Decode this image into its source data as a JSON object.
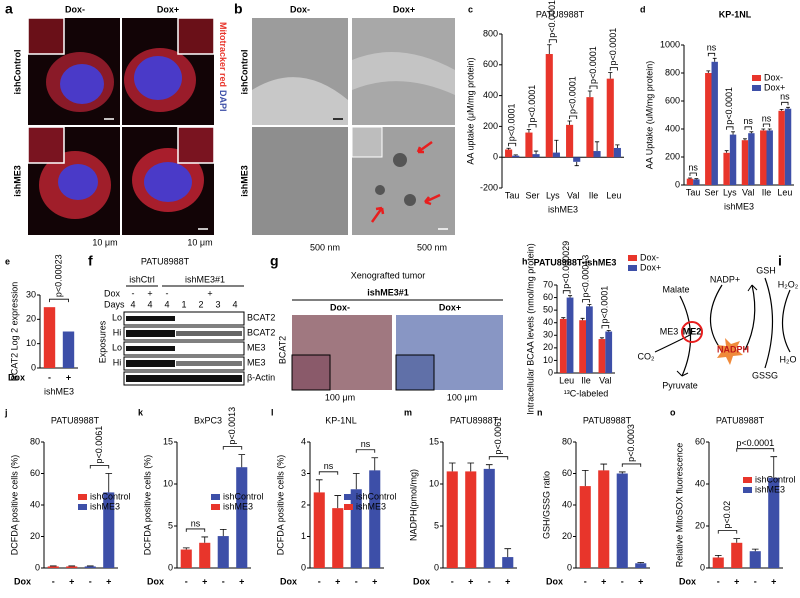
{
  "chart_data": [
    {
      "label": "c",
      "type": "bar",
      "title": "PATU8988T",
      "y_label": "AA uptake (μM/mg protein)",
      "categories": [
        "Tau",
        "Ser",
        "Lys",
        "Val",
        "Ile",
        "Leu"
      ],
      "group_label": "ishME3",
      "series": [
        {
          "color": "#e8352b",
          "values": [
            50,
            160,
            670,
            210,
            390,
            510
          ],
          "errors": [
            8,
            20,
            60,
            25,
            40,
            40
          ]
        },
        {
          "color": "#3d4fa8",
          "values": [
            10,
            20,
            30,
            -30,
            40,
            60
          ],
          "errors": [
            5,
            20,
            80,
            25,
            60,
            20
          ]
        }
      ],
      "annotations": [
        "p<0.0001",
        "p<0.0001",
        "p<0.0001",
        "p<0.0001",
        "p<0.0001",
        "p<0.0001"
      ],
      "ylim": [
        -200,
        800
      ],
      "yticks": [
        -200,
        0,
        200,
        400,
        600,
        800
      ]
    },
    {
      "label": "d",
      "type": "bar",
      "title": "KP-1NL",
      "y_label": "AA Uptake (uM/mg protein)",
      "categories": [
        "Tau",
        "Ser",
        "Lys",
        "Val",
        "Ile",
        "Leu"
      ],
      "group_label": "ishME3",
      "series": [
        {
          "name": "Dox-",
          "color": "#e8352b",
          "values": [
            45,
            800,
            230,
            320,
            390,
            530
          ],
          "errors": [
            5,
            15,
            15,
            10,
            10,
            10
          ]
        },
        {
          "name": "Dox+",
          "color": "#3d4fa8",
          "values": [
            40,
            880,
            360,
            370,
            390,
            545
          ],
          "errors": [
            5,
            25,
            20,
            10,
            10,
            10
          ]
        }
      ],
      "annotations": [
        "ns",
        "ns",
        "p<0.0001",
        "ns",
        "ns",
        "ns"
      ],
      "legend": "upper-right",
      "ylim": [
        0,
        1000
      ],
      "yticks": [
        0,
        200,
        400,
        600,
        800,
        1000
      ]
    },
    {
      "label": "e",
      "type": "bar",
      "y_label": "BCAT2 Log 2 expression",
      "categories": [
        "-",
        "+"
      ],
      "x_label": "Dox",
      "group_label": "ishME3",
      "values": [
        25,
        15
      ],
      "colors": [
        "#e8352b",
        "#3d4fa8"
      ],
      "comparisons": [
        {
          "text": "p<0.00023",
          "pair": [
            0,
            1
          ]
        }
      ],
      "ylim": [
        0,
        30
      ],
      "yticks": [
        0,
        10,
        20,
        30
      ]
    },
    {
      "label": "h",
      "type": "bar",
      "title": "PATU8988T-ishME3",
      "y_label": "Intracellular BCAA levels (nmol/mg protein)",
      "categories": [
        "Leu",
        "Ile",
        "Val"
      ],
      "group_label": "¹³C-labeled",
      "series": [
        {
          "name": "Dox-",
          "color": "#e8352b",
          "values": [
            43,
            42,
            27
          ],
          "errors": [
            1,
            1.5,
            1
          ]
        },
        {
          "name": "Dox+",
          "color": "#3d4fa8",
          "values": [
            60,
            53,
            33
          ],
          "errors": [
            1.5,
            1.5,
            0.8
          ]
        }
      ],
      "annotations": [
        "p<0.000029",
        "p<0.00013",
        "p<0.0001"
      ],
      "legend": "outside-right",
      "ylim": [
        0,
        70
      ],
      "yticks": [
        0,
        10,
        20,
        30,
        40,
        50,
        60,
        70
      ]
    },
    {
      "label": "j",
      "type": "bar",
      "title": "PATU8988T",
      "y_label": "DCFDA positive cells (%)",
      "categories": [
        "-",
        "+",
        "-",
        "+"
      ],
      "x_label": "Dox",
      "values": [
        1,
        1,
        1,
        48
      ],
      "errors": [
        0.3,
        0.3,
        0.3,
        12
      ],
      "colors": [
        "#e8352b",
        "#e8352b",
        "#3d4fa8",
        "#3d4fa8"
      ],
      "comparisons": [
        {
          "text": "p<0.0061",
          "pair": [
            2,
            3
          ]
        }
      ],
      "legend": [
        {
          "name": "ishControl",
          "color": "#e8352b"
        },
        {
          "name": "ishME3",
          "color": "#3d4fa8"
        }
      ],
      "ylim": [
        0,
        80
      ],
      "yticks": [
        0,
        20,
        40,
        60,
        80
      ]
    },
    {
      "label": "k",
      "type": "bar",
      "title": "BxPC3",
      "y_label": "DCFDA positive cells (%)",
      "categories": [
        "-",
        "+",
        "-",
        "+"
      ],
      "x_label": "Dox",
      "values": [
        2.2,
        3,
        3.8,
        12
      ],
      "errors": [
        0.2,
        0.7,
        0.8,
        1.5
      ],
      "colors": [
        "#e8352b",
        "#e8352b",
        "#3d4fa8",
        "#3d4fa8"
      ],
      "comparisons": [
        {
          "text": "ns",
          "pair": [
            0,
            1
          ]
        },
        {
          "text": "p<0.0013",
          "pair": [
            2,
            3
          ]
        }
      ],
      "legend": [
        {
          "name": "ishControl",
          "color": "#3d4fa8"
        },
        {
          "name": "ishME3",
          "color": "#e8352b"
        }
      ],
      "ylim": [
        0,
        15
      ],
      "yticks": [
        0,
        5,
        10,
        15
      ]
    },
    {
      "label": "l",
      "type": "bar",
      "title": "KP-1NL",
      "y_label": "DCFDA positive cells (%)",
      "categories": [
        "-",
        "+",
        "-",
        "+"
      ],
      "x_label": "Dox",
      "values": [
        2.4,
        1.9,
        2.5,
        3.1
      ],
      "errors": [
        0.4,
        0.4,
        0.5,
        0.4
      ],
      "colors": [
        "#e8352b",
        "#e8352b",
        "#3d4fa8",
        "#3d4fa8"
      ],
      "comparisons": [
        {
          "text": "ns",
          "pair": [
            0,
            1
          ]
        },
        {
          "text": "ns",
          "pair": [
            2,
            3
          ]
        }
      ],
      "legend": [
        {
          "name": "ishControl",
          "color": "#3d4fa8"
        },
        {
          "name": "ishME3",
          "color": "#e8352b"
        }
      ],
      "ylim": [
        0,
        4
      ],
      "yticks": [
        0,
        1,
        2,
        3,
        4
      ]
    },
    {
      "label": "m",
      "type": "bar",
      "title": "PATU8988T",
      "y_label": "NADPH(pmol/mg)",
      "categories": [
        "-",
        "+",
        "-",
        "+"
      ],
      "x_label": "Dox",
      "values": [
        11.5,
        11.5,
        11.8,
        1.3
      ],
      "errors": [
        1,
        1,
        0.5,
        1
      ],
      "colors": [
        "#e8352b",
        "#e8352b",
        "#3d4fa8",
        "#3d4fa8"
      ],
      "comparisons": [
        {
          "text": "p<0.0061",
          "pair": [
            2,
            3
          ]
        }
      ],
      "ylim": [
        0,
        15
      ],
      "yticks": [
        0,
        5,
        10,
        15
      ]
    },
    {
      "label": "n",
      "type": "bar",
      "title": "PATU8988T",
      "y_label": "GSH/GSSG ratio",
      "categories": [
        "-",
        "+",
        "-",
        "+"
      ],
      "x_label": "Dox",
      "values": [
        52,
        62,
        60,
        3
      ],
      "errors": [
        10,
        4,
        1,
        0.5
      ],
      "colors": [
        "#e8352b",
        "#e8352b",
        "#3d4fa8",
        "#3d4fa8"
      ],
      "comparisons": [
        {
          "text": "p<0.0003",
          "pair": [
            2,
            3
          ]
        }
      ],
      "ylim": [
        0,
        80
      ],
      "yticks": [
        0,
        20,
        40,
        60,
        80
      ]
    },
    {
      "label": "o",
      "type": "bar",
      "title": "PATU8988T",
      "y_label": "Relative MitoSOX fluorescence",
      "categories": [
        "-",
        "+",
        "-",
        "+"
      ],
      "x_label": "Dox",
      "values": [
        5,
        12,
        8,
        43
      ],
      "errors": [
        1,
        2,
        1,
        10
      ],
      "colors": [
        "#e8352b",
        "#e8352b",
        "#3d4fa8",
        "#3d4fa8"
      ],
      "comparisons": [
        {
          "text": "p<0.02",
          "pair": [
            0,
            1
          ]
        },
        {
          "text": "p<0.0001",
          "pair": [
            1,
            3
          ]
        }
      ],
      "legend": [
        {
          "name": "ishControl",
          "color": "#e8352b"
        },
        {
          "name": "ishME3",
          "color": "#3d4fa8"
        }
      ],
      "ylim": [
        0,
        60
      ],
      "yticks": [
        0,
        20,
        40,
        60
      ]
    }
  ],
  "panel_a": {
    "label": "a",
    "columns": [
      "Dox-",
      "Dox+"
    ],
    "rows": [
      "ishControl",
      "ishME3"
    ],
    "stain": [
      "Mitotracker red",
      "DAPI"
    ],
    "scale_bars": [
      "10 μm",
      "10 μm"
    ]
  },
  "panel_b": {
    "label": "b",
    "columns": [
      "Dox-",
      "Dox+"
    ],
    "rows": [
      "ishControl",
      "ishME3"
    ],
    "scale_bars": [
      "500 nm",
      "500 nm"
    ]
  },
  "panel_f": {
    "label": "f",
    "title": "PATU8988T",
    "groups": [
      "ishCtrl",
      "ishME3#1"
    ],
    "dox_label": "Dox",
    "dox": [
      "-",
      "+",
      "-",
      "+"
    ],
    "days_label": "Days",
    "days": [
      4,
      4,
      4,
      1,
      2,
      3,
      4
    ],
    "exposures_label": "Exposures",
    "exposures": [
      "Lo",
      "Hi",
      "Lo",
      "Hi"
    ],
    "bands": [
      "BCAT2",
      "BCAT2",
      "ME3",
      "ME3",
      "β-Actin"
    ]
  },
  "panel_g": {
    "label": "g",
    "title": "Xenografted tumor",
    "group": "ishME3#1",
    "columns": [
      "Dox-",
      "Dox+"
    ],
    "stain": "BCAT2",
    "scale_bars": [
      "100 μm",
      "100 μm"
    ]
  },
  "panel_i": {
    "label": "i",
    "nodes": {
      "malate": "Malate",
      "nadp": "NADP+",
      "gsh": "GSH",
      "h2o2": "H₂O₂",
      "me3": "ME3",
      "me2": "ME2",
      "nadph": "NADPH",
      "co2": "CO₂",
      "pyruvate": "Pyruvate",
      "gssg": "GSSG",
      "h2o": "H₂O"
    }
  }
}
